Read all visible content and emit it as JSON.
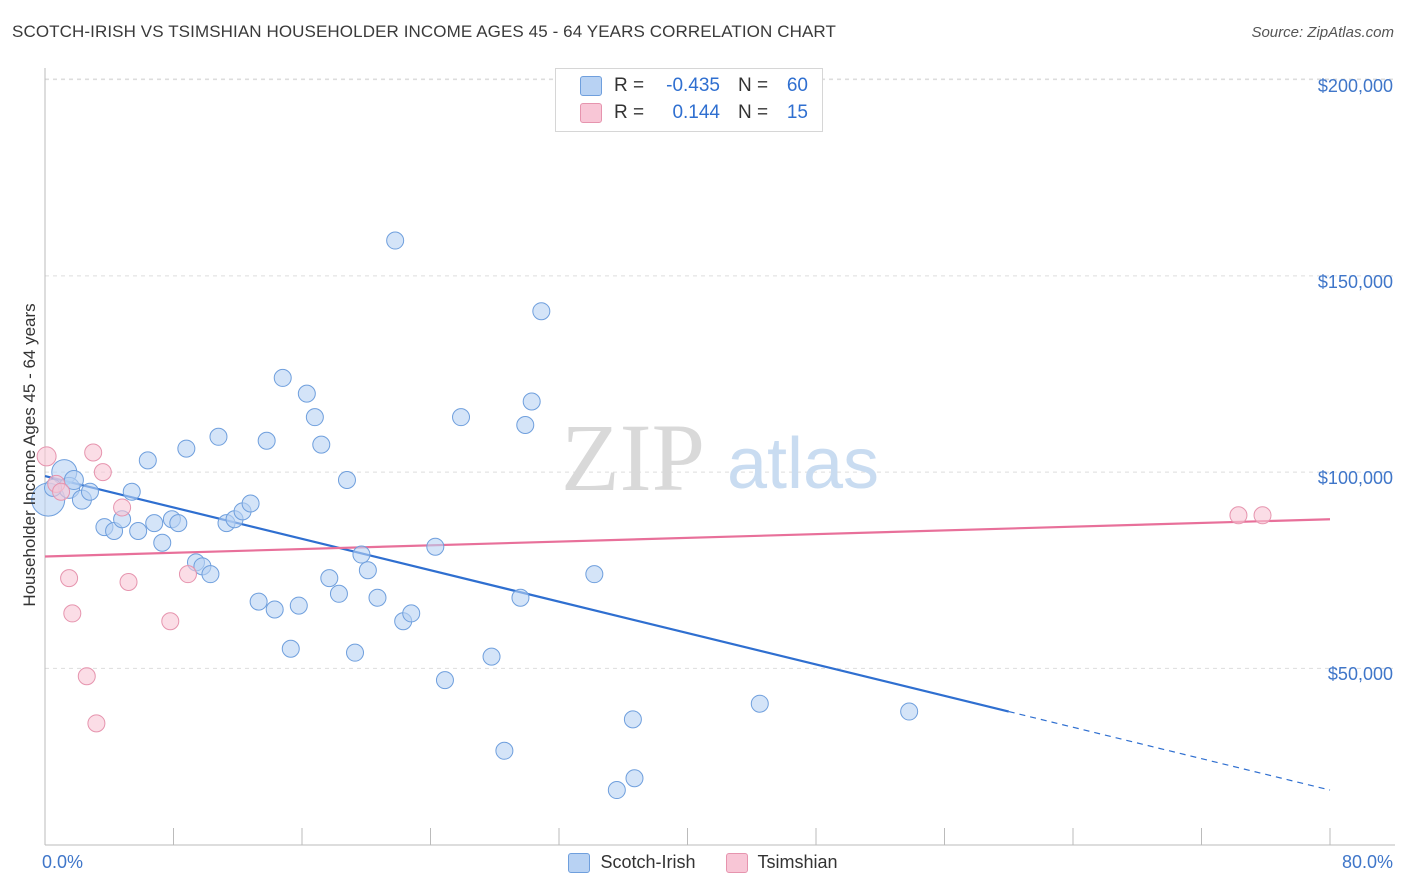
{
  "title": "SCOTCH-IRISH VS TSIMSHIAN HOUSEHOLDER INCOME AGES 45 - 64 YEARS CORRELATION CHART",
  "source": "Source: ZipAtlas.com",
  "watermark": {
    "zip": "ZIP",
    "atlas": "atlas"
  },
  "colors": {
    "blue_fill": "#b8d2f3",
    "blue_stroke": "#6f9fdd",
    "blue_line": "#2f6fd0",
    "pink_fill": "#f8c6d6",
    "pink_stroke": "#e694ae",
    "pink_line": "#e8709a",
    "tick_text": "#3f76c9",
    "grid": "#dddddd"
  },
  "legend": {
    "rows": [
      {
        "label": "R =",
        "r": "-0.435",
        "n_label": "N =",
        "n": "60",
        "color": "#b8d2f3",
        "border": "#6f9fdd"
      },
      {
        "label": "R =",
        "r": "0.144",
        "n_label": "N =",
        "n": "15",
        "color": "#f8c6d6",
        "border": "#e694ae"
      }
    ]
  },
  "bottom_legend": [
    {
      "label": "Scotch-Irish",
      "color": "#b8d2f3",
      "border": "#6f9fdd"
    },
    {
      "label": "Tsimshian",
      "color": "#f8c6d6",
      "border": "#e694ae"
    }
  ],
  "chart_data": {
    "type": "scatter",
    "title": "SCOTCH-IRISH VS TSIMSHIAN HOUSEHOLDER INCOME AGES 45 - 64 YEARS CORRELATION CHART",
    "xlabel": "",
    "ylabel": "Householder Income Ages 45 - 64 years",
    "xlim": [
      0,
      80
    ],
    "ylim": [
      5000,
      205000
    ],
    "x_tick_labels": [
      "0.0%",
      "80.0%"
    ],
    "y_ticks": [
      50000,
      100000,
      150000,
      200000
    ],
    "y_tick_labels": [
      "$50,000",
      "$100,000",
      "$150,000",
      "$200,000"
    ],
    "grid": "horizontal dashed",
    "series": [
      {
        "name": "Scotch-Irish",
        "points": [
          [
            0.2,
            93000,
            14
          ],
          [
            1.2,
            100000,
            10
          ],
          [
            1.5,
            96000,
            8
          ],
          [
            1.8,
            98000,
            7
          ],
          [
            2.3,
            93000,
            7
          ],
          [
            2.8,
            95000,
            6
          ],
          [
            3.7,
            86000,
            6
          ],
          [
            4.3,
            85000,
            6
          ],
          [
            4.8,
            88000,
            6
          ],
          [
            5.4,
            95000,
            6
          ],
          [
            5.8,
            85000,
            6
          ],
          [
            6.4,
            103000,
            6
          ],
          [
            6.8,
            87000,
            6
          ],
          [
            7.3,
            82000,
            6
          ],
          [
            7.9,
            88000,
            6
          ],
          [
            8.3,
            87000,
            6
          ],
          [
            8.8,
            106000,
            6
          ],
          [
            9.4,
            77000,
            6
          ],
          [
            9.8,
            76000,
            6
          ],
          [
            10.3,
            74000,
            6
          ],
          [
            10.8,
            109000,
            6
          ],
          [
            11.3,
            87000,
            6
          ],
          [
            11.8,
            88000,
            6
          ],
          [
            12.3,
            90000,
            6
          ],
          [
            12.8,
            92000,
            6
          ],
          [
            13.3,
            67000,
            6
          ],
          [
            13.8,
            108000,
            6
          ],
          [
            14.3,
            65000,
            6
          ],
          [
            14.8,
            124000,
            6
          ],
          [
            15.3,
            55000,
            6
          ],
          [
            15.8,
            66000,
            6
          ],
          [
            16.3,
            120000,
            6
          ],
          [
            16.8,
            114000,
            6
          ],
          [
            17.2,
            107000,
            6
          ],
          [
            17.7,
            73000,
            6
          ],
          [
            18.3,
            69000,
            6
          ],
          [
            18.8,
            98000,
            6
          ],
          [
            19.3,
            54000,
            6
          ],
          [
            19.7,
            79000,
            6
          ],
          [
            20.1,
            75000,
            6
          ],
          [
            20.7,
            68000,
            6
          ],
          [
            21.8,
            159000,
            6
          ],
          [
            22.3,
            62000,
            6
          ],
          [
            22.8,
            64000,
            6
          ],
          [
            24.3,
            81000,
            6
          ],
          [
            24.9,
            47000,
            6
          ],
          [
            25.9,
            114000,
            6
          ],
          [
            27.8,
            53000,
            6
          ],
          [
            28.6,
            29000,
            6
          ],
          [
            29.6,
            68000,
            6
          ],
          [
            29.9,
            112000,
            6
          ],
          [
            30.3,
            118000,
            6
          ],
          [
            30.9,
            141000,
            6
          ],
          [
            34.2,
            74000,
            6
          ],
          [
            35.6,
            19000,
            6
          ],
          [
            36.6,
            37000,
            6
          ],
          [
            36.7,
            22000,
            6
          ],
          [
            44.5,
            41000,
            6
          ],
          [
            53.8,
            39000,
            6
          ],
          [
            0.5,
            96000,
            6
          ]
        ],
        "trend": {
          "x0": 0,
          "y0": 99000,
          "x1": 60,
          "y1": 39000,
          "x_dashed_end": 80,
          "y_dashed_end": 19000
        }
      },
      {
        "name": "Tsimshian",
        "points": [
          [
            0.1,
            104000,
            7
          ],
          [
            0.7,
            97000,
            6
          ],
          [
            1.0,
            95000,
            6
          ],
          [
            1.5,
            73000,
            6
          ],
          [
            1.7,
            64000,
            6
          ],
          [
            2.6,
            48000,
            6
          ],
          [
            3.0,
            105000,
            6
          ],
          [
            3.2,
            36000,
            6
          ],
          [
            3.6,
            100000,
            6
          ],
          [
            4.8,
            91000,
            6
          ],
          [
            5.2,
            72000,
            6
          ],
          [
            7.8,
            62000,
            6
          ],
          [
            8.9,
            74000,
            6
          ],
          [
            74.3,
            89000,
            6
          ],
          [
            75.8,
            89000,
            6
          ]
        ],
        "trend": {
          "x0": 0,
          "y0": 78500,
          "x1": 80,
          "y1": 88000
        }
      }
    ]
  }
}
